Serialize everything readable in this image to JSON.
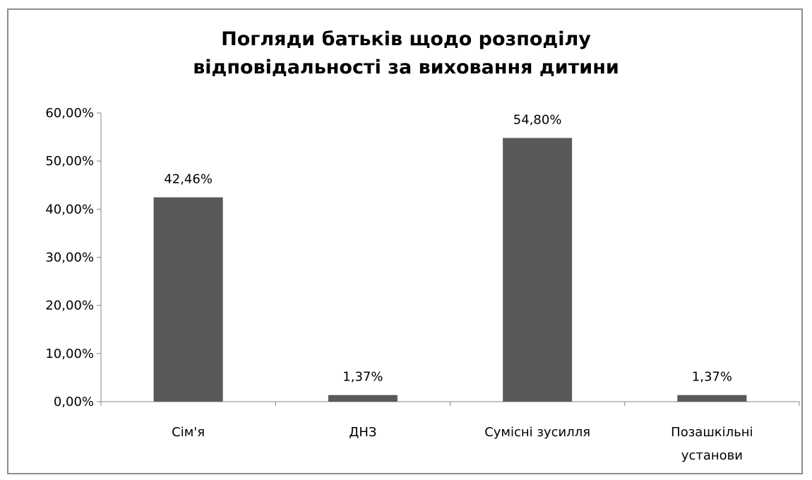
{
  "chart_data": {
    "type": "bar",
    "title_lines": [
      "Погляди батьків щодо розподілу",
      "відповідальності за виховання дитини"
    ],
    "categories": [
      [
        "Сім'я"
      ],
      [
        "ДНЗ"
      ],
      [
        "Сумісні зусилля"
      ],
      [
        "Позашкільні",
        "установи"
      ]
    ],
    "values": [
      42.46,
      1.37,
      54.8,
      1.37
    ],
    "data_labels": [
      "42,46%",
      "1,37%",
      "54,80%",
      "1,37%"
    ],
    "y_ticks": [
      0,
      10,
      20,
      30,
      40,
      50,
      60
    ],
    "y_tick_labels": [
      "0,00%",
      "10,00%",
      "20,00%",
      "30,00%",
      "40,00%",
      "50,00%",
      "60,00%"
    ],
    "ylim": [
      0,
      60
    ],
    "bar_color": "#595959",
    "axis_color": "#868686",
    "grid": false,
    "legend": "none"
  }
}
